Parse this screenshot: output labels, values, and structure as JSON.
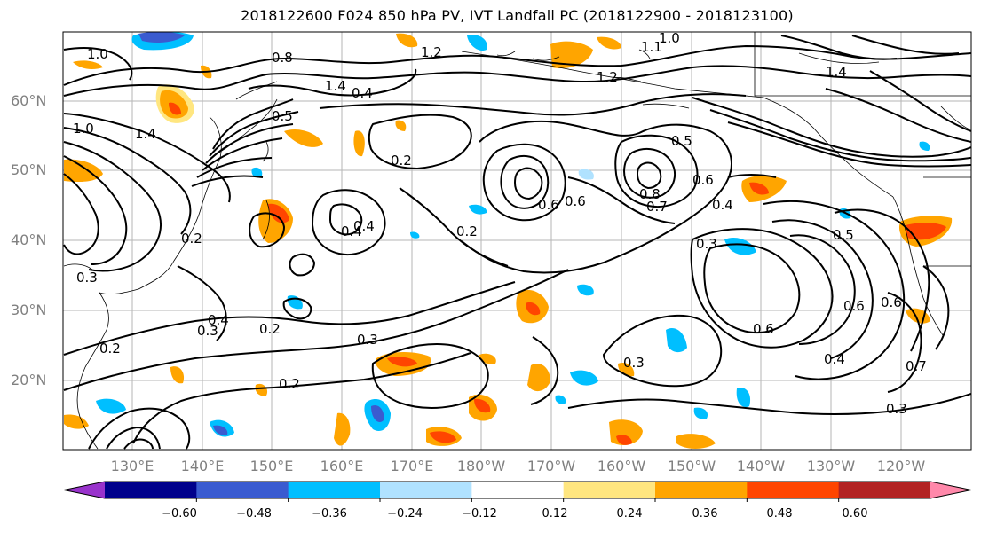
{
  "title": "2018122600 F024 850 hPa PV, IVT Landfall PC (2018122900 - 2018123100)",
  "lat_labels": [
    "60°N",
    "50°N",
    "40°N",
    "30°N",
    "20°N"
  ],
  "lon_labels": [
    "130°E",
    "140°E",
    "150°E",
    "160°E",
    "170°E",
    "180°W",
    "170°W",
    "160°W",
    "150°W",
    "140°W",
    "130°W",
    "120°W"
  ],
  "colorbar": {
    "ticks": [
      "−0.60",
      "−0.48",
      "−0.36",
      "−0.24",
      "−0.12",
      "0.12",
      "0.24",
      "0.36",
      "0.48",
      "0.60"
    ],
    "colors": [
      "#9933cc",
      "#00008b",
      "#3a5bd0",
      "#00bfff",
      "#b0e2ff",
      "#ffffff",
      "#ffe680",
      "#ffa500",
      "#ff4500",
      "#b22222",
      "#ff88aa"
    ]
  },
  "contour_labels": [
    "1.0",
    "0.8",
    "1.2",
    "1.1",
    "1.0",
    "1.4",
    "1.2",
    "0.4",
    "0.5",
    "1.4",
    "0.5",
    "0.6",
    "0.2",
    "0.6",
    "0.8",
    "0.7",
    "0.6",
    "0.4",
    "0.4",
    "0.2",
    "0.3",
    "0.5",
    "0.4",
    "0.2",
    "0.3",
    "0.4",
    "0.3",
    "0.2",
    "0.3",
    "0.2",
    "0.3",
    "0.6",
    "0.6",
    "0.6",
    "0.4",
    "0.7",
    "0.3",
    "0.2",
    "1.4",
    "1.0"
  ]
}
